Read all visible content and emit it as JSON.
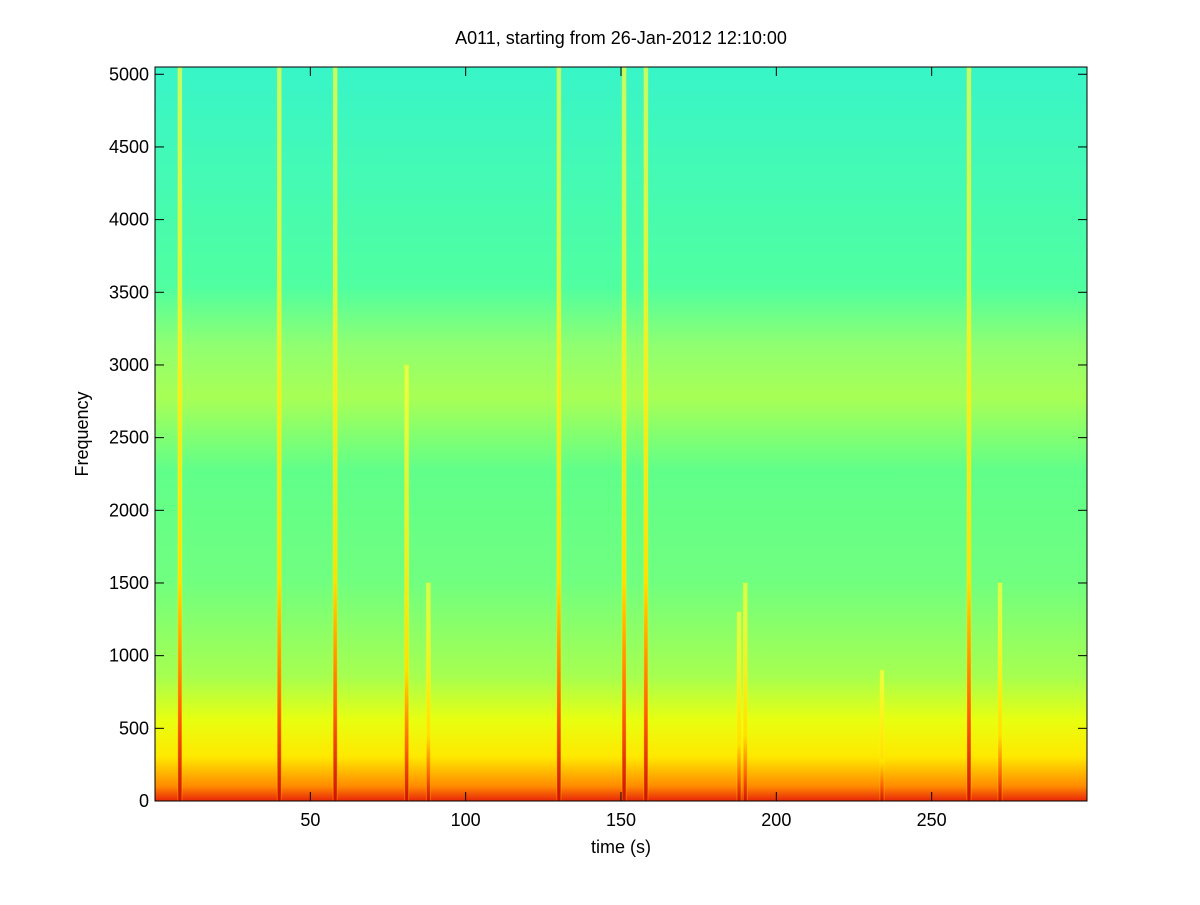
{
  "chart_data": {
    "type": "spectrogram",
    "title": "A011, starting from 26-Jan-2012 12:10:00",
    "x_label": "time (s)",
    "y_label": "Frequency",
    "xlim": [
      0,
      300
    ],
    "ylim": [
      0,
      5050
    ],
    "xticks": [
      50,
      100,
      150,
      200,
      250
    ],
    "yticks": [
      0,
      500,
      1000,
      1500,
      2000,
      2500,
      3000,
      3500,
      4000,
      4500,
      5000
    ],
    "color": "#ffff00",
    "x": [
      8,
      40,
      58,
      81,
      88,
      130,
      151,
      158,
      188,
      190,
      234,
      262,
      272
    ],
    "values": [
      5050,
      5050,
      5050,
      3000,
      1500,
      5050,
      5050,
      5050,
      1300,
      1500,
      900,
      5050,
      1500
    ]
  }
}
